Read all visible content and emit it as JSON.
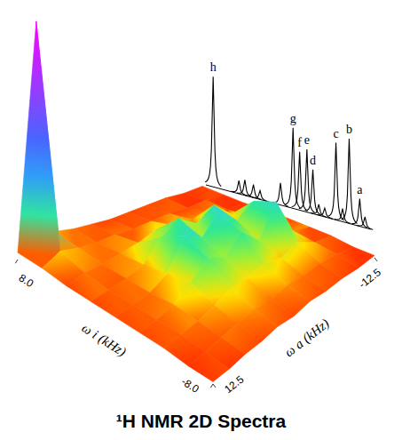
{
  "chart_data": {
    "type": "surface3d",
    "title": "¹H NMR 2D Spectra",
    "x_label": "ω a (kHz)",
    "y_label": "ω i (kHz)",
    "xlim": [
      12.5,
      -12.5
    ],
    "xticks": [
      12.5,
      -12.5
    ],
    "ylim": [
      -8,
      8
    ],
    "yticks": [
      {
        "value": 8,
        "label": "8.0"
      },
      {
        "value": -8,
        "label": "-8.0"
      }
    ],
    "zlim": [
      0,
      100
    ],
    "x": [
      12.5,
      10,
      7.5,
      5,
      2.5,
      0,
      -2.5,
      -5,
      -7.5,
      -10,
      -12.5
    ],
    "y": [
      8,
      6,
      4,
      2,
      0,
      -2,
      -4,
      -6,
      -8
    ],
    "z": [
      [
        3,
        100,
        6,
        4,
        3,
        2,
        2,
        2,
        2,
        1,
        1
      ],
      [
        3,
        7,
        5,
        4,
        4,
        3,
        3,
        3,
        2,
        2,
        1
      ],
      [
        2,
        4,
        4,
        5,
        6,
        8,
        6,
        5,
        4,
        2,
        1
      ],
      [
        2,
        3,
        4,
        6,
        14,
        18,
        12,
        16,
        8,
        3,
        2
      ],
      [
        2,
        3,
        4,
        8,
        20,
        15,
        22,
        14,
        18,
        4,
        2
      ],
      [
        2,
        3,
        5,
        10,
        16,
        12,
        18,
        10,
        22,
        5,
        2
      ],
      [
        2,
        3,
        4,
        6,
        9,
        8,
        10,
        7,
        9,
        4,
        2
      ],
      [
        1,
        2,
        3,
        4,
        5,
        4,
        5,
        4,
        4,
        3,
        1
      ],
      [
        1,
        1,
        2,
        2,
        3,
        2,
        3,
        2,
        2,
        1,
        1
      ]
    ],
    "spectrum": {
      "ylim": [
        0,
        100
      ],
      "x": [
        11.4,
        7.5,
        6.6,
        5.3,
        4.3,
        1.2,
        -0.7,
        -1.7,
        -2.8,
        -3.7,
        -4.6,
        -5.5,
        -7.2,
        -8.2,
        -9.2,
        -10.8,
        -11.6
      ],
      "values": [
        100,
        12,
        14,
        12,
        8,
        20,
        73,
        53,
        57,
        40,
        10,
        8,
        70,
        12,
        77,
        25,
        10
      ],
      "labels": [
        "h",
        null,
        null,
        null,
        null,
        null,
        "g",
        "f",
        "e",
        "d",
        null,
        null,
        "c",
        null,
        "b",
        "a",
        null
      ]
    }
  }
}
